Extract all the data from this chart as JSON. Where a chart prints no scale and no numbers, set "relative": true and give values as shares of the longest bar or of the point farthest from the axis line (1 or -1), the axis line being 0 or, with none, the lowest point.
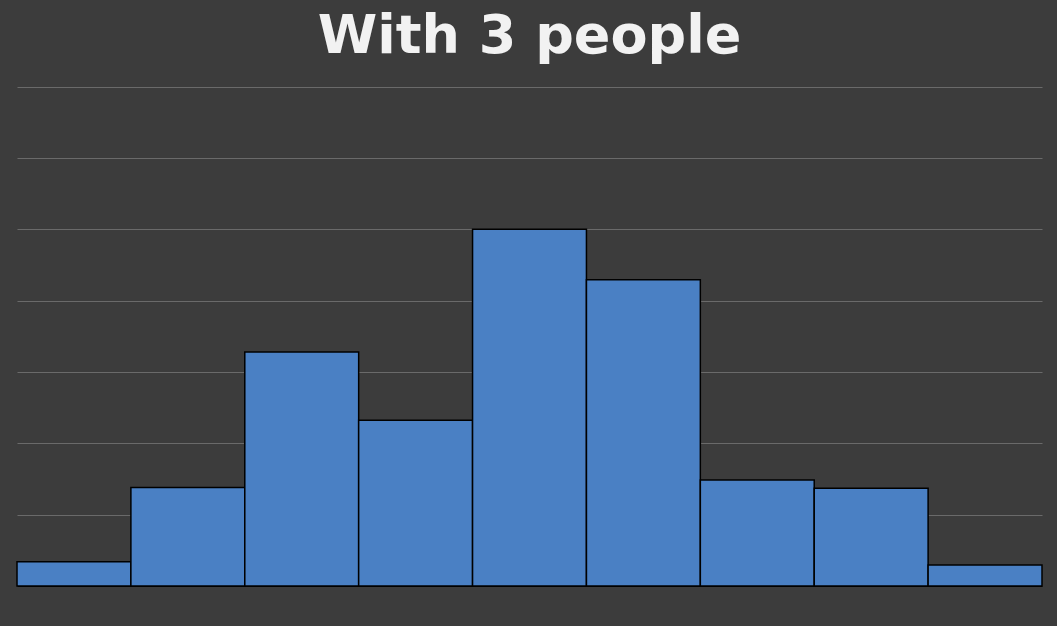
{
  "chart_data": {
    "type": "bar",
    "title": "With 3 people",
    "relative": true,
    "grid": "y",
    "color": "#4a80c4",
    "categories": [
      null,
      null,
      null,
      null,
      null,
      null,
      null,
      null,
      null
    ],
    "values": [
      0.068,
      0.276,
      0.656,
      0.465,
      1,
      0.859,
      0.297,
      0.274,
      0.059
    ]
  }
}
